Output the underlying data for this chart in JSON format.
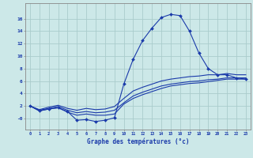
{
  "x": [
    0,
    1,
    2,
    3,
    4,
    5,
    6,
    7,
    8,
    9,
    10,
    11,
    12,
    13,
    14,
    15,
    16,
    17,
    18,
    19,
    20,
    21,
    22,
    23
  ],
  "line1": [
    2.0,
    1.2,
    1.5,
    1.7,
    1.1,
    -0.3,
    -0.2,
    -0.5,
    -0.3,
    0.1,
    5.5,
    9.5,
    12.5,
    14.5,
    16.2,
    16.7,
    16.5,
    14.0,
    10.5,
    8.0,
    7.0,
    7.0,
    6.5,
    6.3
  ],
  "line2": [
    2.0,
    1.2,
    1.5,
    1.7,
    1.0,
    0.5,
    0.7,
    0.5,
    0.5,
    0.7,
    2.3,
    3.2,
    3.8,
    4.3,
    4.8,
    5.2,
    5.4,
    5.6,
    5.7,
    5.9,
    6.1,
    6.3,
    6.3,
    6.3
  ],
  "line3": [
    2.0,
    1.3,
    1.6,
    1.9,
    1.3,
    0.9,
    1.1,
    0.9,
    1.0,
    1.3,
    2.5,
    3.6,
    4.2,
    4.7,
    5.2,
    5.5,
    5.7,
    5.9,
    6.0,
    6.2,
    6.3,
    6.5,
    6.5,
    6.5
  ],
  "line4": [
    2.0,
    1.4,
    1.8,
    2.1,
    1.6,
    1.3,
    1.6,
    1.4,
    1.5,
    1.9,
    3.2,
    4.4,
    5.0,
    5.5,
    6.0,
    6.3,
    6.5,
    6.7,
    6.8,
    7.0,
    7.0,
    7.2,
    7.0,
    7.0
  ],
  "line_color": "#1a3aaa",
  "bg_color": "#cce8e8",
  "grid_color": "#aacccc",
  "xlabel": "Graphe des températures (°c)",
  "xlim": [
    -0.5,
    23.5
  ],
  "ylim": [
    -1.8,
    18.5
  ],
  "yticks": [
    0,
    2,
    4,
    6,
    8,
    10,
    12,
    14,
    16
  ],
  "ytick_labels": [
    "-0",
    "2",
    "4",
    "6",
    "8",
    "10",
    "12",
    "14",
    "16"
  ],
  "xticks": [
    0,
    1,
    2,
    3,
    4,
    5,
    6,
    7,
    8,
    9,
    10,
    11,
    12,
    13,
    14,
    15,
    16,
    17,
    18,
    19,
    20,
    21,
    22,
    23
  ]
}
